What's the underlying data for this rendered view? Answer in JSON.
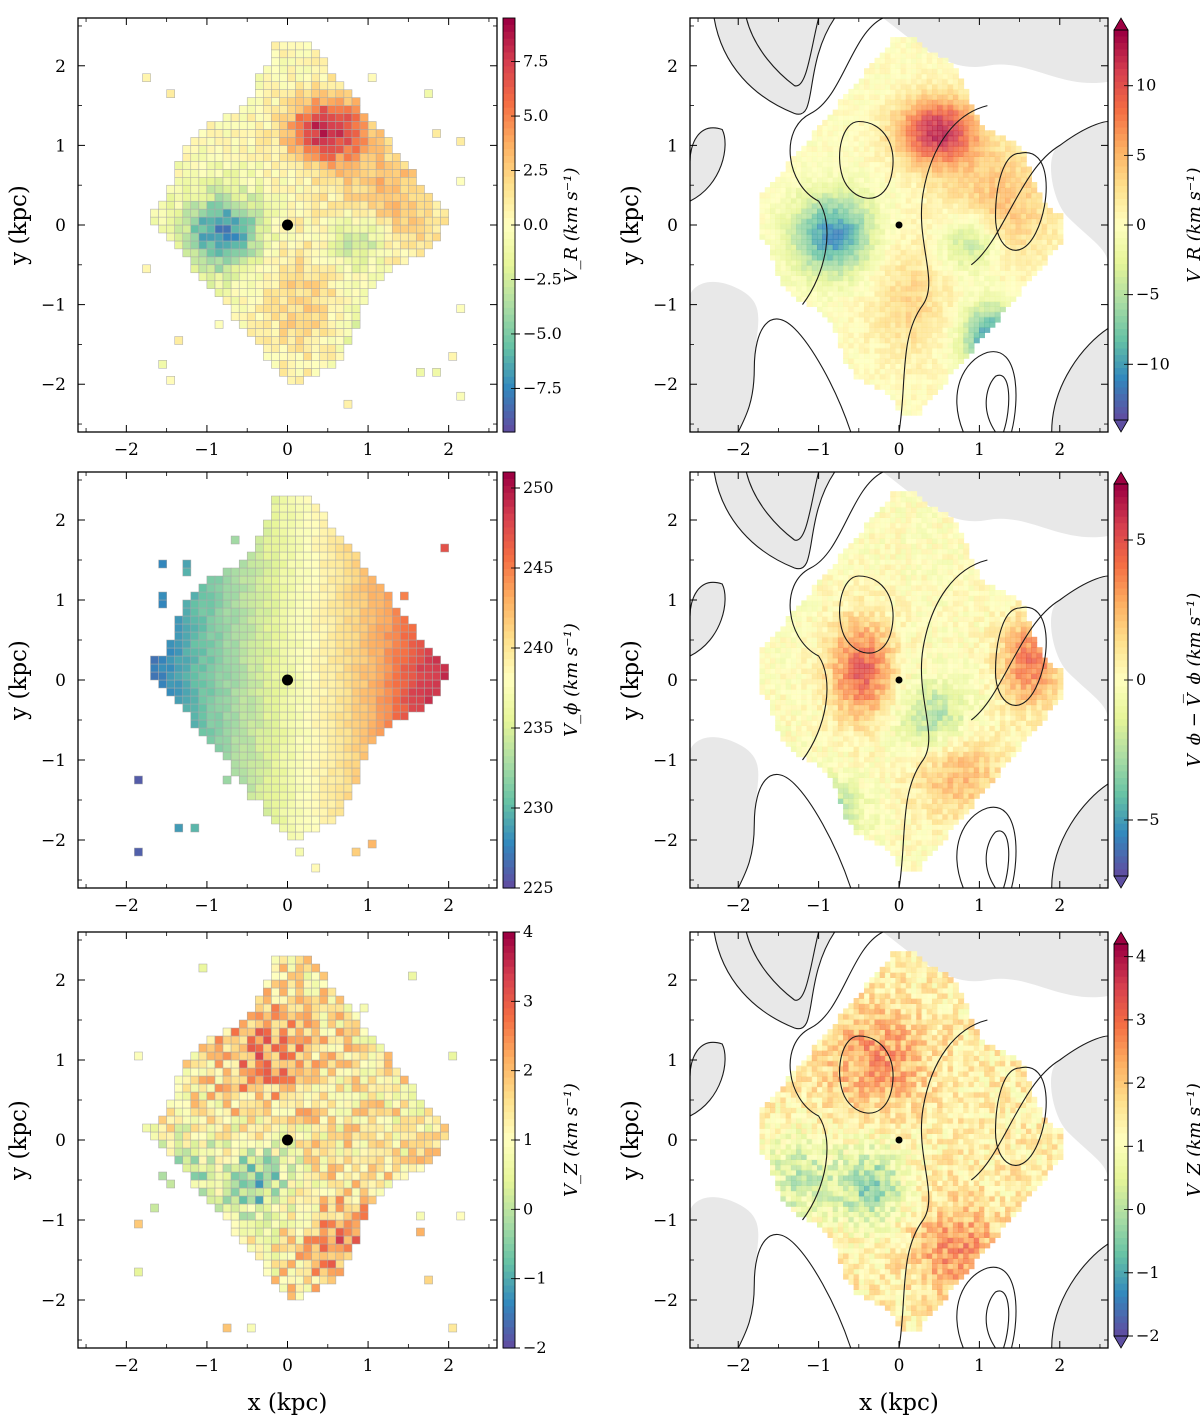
{
  "chart_data": [
    {
      "type": "heatmap",
      "panel": "top-left",
      "x_ticks": [
        "−2",
        "−1",
        "0",
        "1",
        "2"
      ],
      "y_ticks": [
        "−2",
        "−1",
        "0",
        "1",
        "2"
      ],
      "ylabel": "y (kpc)",
      "xlim": [
        -2.6,
        2.6
      ],
      "ylim": [
        -2.6,
        2.6
      ],
      "colorbar": {
        "label": "V_R (km s⁻¹)",
        "range": [
          -9.5,
          9.5
        ],
        "ticks": [
          "−7.5",
          "−5.0",
          "−2.5",
          "0.0",
          "2.5",
          "5.0",
          "7.5"
        ]
      },
      "sun_position": [
        0,
        0
      ]
    },
    {
      "type": "heatmap",
      "panel": "top-right",
      "x_ticks": [
        "−2",
        "−1",
        "0",
        "1",
        "2"
      ],
      "y_ticks": [
        "−2",
        "−1",
        "0",
        "1",
        "2"
      ],
      "ylabel": "y (kpc)",
      "xlim": [
        -2.6,
        2.6
      ],
      "ylim": [
        -2.6,
        2.6
      ],
      "contours": true,
      "colorbar": {
        "label": "V_R (km s⁻¹)",
        "range": [
          -14,
          14
        ],
        "extend": "both",
        "ticks": [
          "−10",
          "−5",
          "0",
          "5",
          "10"
        ]
      },
      "sun_position": [
        0,
        0
      ]
    },
    {
      "type": "heatmap",
      "panel": "middle-left",
      "x_ticks": [
        "−2",
        "−1",
        "0",
        "1",
        "2"
      ],
      "y_ticks": [
        "−2",
        "−1",
        "0",
        "1",
        "2"
      ],
      "ylabel": "y (kpc)",
      "xlim": [
        -2.6,
        2.6
      ],
      "ylim": [
        -2.6,
        2.6
      ],
      "colorbar": {
        "label": "V_ϕ (km s⁻¹)",
        "range": [
          225,
          251
        ],
        "ticks": [
          "225",
          "230",
          "235",
          "240",
          "245",
          "250"
        ]
      },
      "sun_position": [
        0,
        0
      ]
    },
    {
      "type": "heatmap",
      "panel": "middle-right",
      "x_ticks": [
        "−2",
        "−1",
        "0",
        "1",
        "2"
      ],
      "y_ticks": [
        "−2",
        "−1",
        "0",
        "1",
        "2"
      ],
      "ylabel": "y (kpc)",
      "xlim": [
        -2.6,
        2.6
      ],
      "ylim": [
        -2.6,
        2.6
      ],
      "contours": true,
      "colorbar": {
        "label": "V_ϕ − V̅_ϕ (km s⁻¹)",
        "range": [
          -7,
          7
        ],
        "extend": "both",
        "ticks": [
          "−5",
          "0",
          "5"
        ]
      },
      "sun_position": [
        0,
        0
      ]
    },
    {
      "type": "heatmap",
      "panel": "bottom-left",
      "x_ticks": [
        "−2",
        "−1",
        "0",
        "1",
        "2"
      ],
      "y_ticks": [
        "−2",
        "−1",
        "0",
        "1",
        "2"
      ],
      "xlabel": "x (kpc)",
      "ylabel": "y (kpc)",
      "xlim": [
        -2.6,
        2.6
      ],
      "ylim": [
        -2.6,
        2.6
      ],
      "colorbar": {
        "label": "V_Z (km s⁻¹)",
        "range": [
          -2,
          4
        ],
        "ticks": [
          "−2",
          "−1",
          "0",
          "1",
          "2",
          "3",
          "4"
        ]
      },
      "sun_position": [
        0,
        0
      ]
    },
    {
      "type": "heatmap",
      "panel": "bottom-right",
      "x_ticks": [
        "−2",
        "−1",
        "0",
        "1",
        "2"
      ],
      "y_ticks": [
        "−2",
        "−1",
        "0",
        "1",
        "2"
      ],
      "xlabel": "x (kpc)",
      "ylabel": "y (kpc)",
      "xlim": [
        -2.6,
        2.6
      ],
      "ylim": [
        -2.6,
        2.6
      ],
      "contours": true,
      "colorbar": {
        "label": "V_Z (km s⁻¹)",
        "range": [
          -2,
          4.2
        ],
        "extend": "both",
        "ticks": [
          "−2",
          "−1",
          "0",
          "1",
          "2",
          "3",
          "4"
        ]
      },
      "sun_position": [
        0,
        0
      ]
    }
  ],
  "colormap": [
    "#5e4fa2",
    "#3288bd",
    "#66c2a5",
    "#abdda4",
    "#e6f598",
    "#ffffbf",
    "#fee08b",
    "#fdae61",
    "#f46d43",
    "#d53e4f",
    "#9e0142"
  ]
}
